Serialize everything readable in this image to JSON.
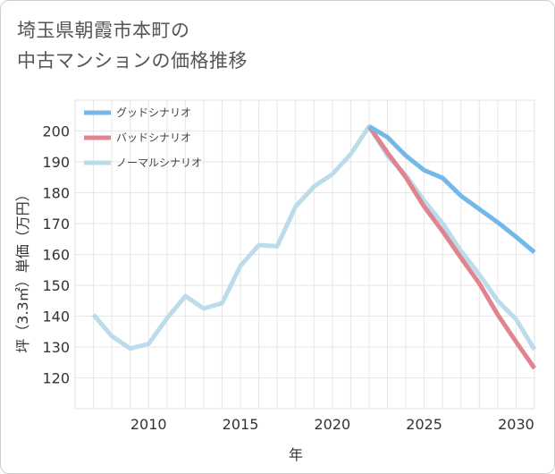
{
  "title_line1": "埼玉県朝霞市本町の",
  "title_line2": "中古マンションの価格推移",
  "chart_data": {
    "type": "line",
    "title": "埼玉県朝霞市本町の中古マンションの価格推移",
    "xlabel": "年",
    "ylabel": "坪（3.3㎡）単価（万円）",
    "xlim": [
      2006,
      2031
    ],
    "ylim": [
      110,
      210
    ],
    "x_ticks": [
      2010,
      2015,
      2020,
      2025,
      2030
    ],
    "y_ticks": [
      120,
      130,
      140,
      150,
      160,
      170,
      180,
      190,
      200
    ],
    "grid": true,
    "legend_position": "top-left",
    "series": [
      {
        "name": "グッドシナリオ",
        "color": "#74b8ea",
        "x": [
          2022,
          2023,
          2024,
          2025,
          2026,
          2027,
          2028,
          2029,
          2030,
          2031
        ],
        "y": [
          201.5,
          198,
          192,
          187.3,
          184.8,
          179,
          174.7,
          170.4,
          165.7,
          160.7
        ]
      },
      {
        "name": "バッドシナリオ",
        "color": "#e0858f",
        "x": [
          2022,
          2023,
          2024,
          2025,
          2026,
          2027,
          2028,
          2029,
          2030,
          2031
        ],
        "y": [
          201.5,
          193,
          185,
          175.5,
          167.5,
          158.9,
          150.6,
          140.5,
          131.7,
          123.1
        ]
      },
      {
        "name": "ノーマルシナリオ",
        "color": "#bcdcec",
        "x": [
          2007,
          2008,
          2009,
          2010,
          2011,
          2012,
          2013,
          2014,
          2015,
          2016,
          2017,
          2018,
          2019,
          2020,
          2021,
          2022,
          2023,
          2024,
          2025,
          2026,
          2027,
          2028,
          2029,
          2030,
          2031
        ],
        "y": [
          140.5,
          133.5,
          129.5,
          131,
          139.3,
          146.5,
          142.5,
          144.2,
          156.3,
          163,
          162.7,
          175.5,
          182,
          186,
          192.5,
          201.5,
          192,
          185.7,
          177.4,
          170.1,
          161.1,
          153.5,
          145,
          139,
          129.2
        ]
      }
    ]
  }
}
